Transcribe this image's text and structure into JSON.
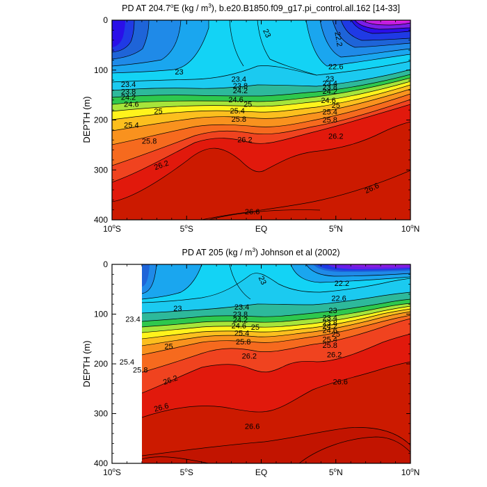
{
  "chart_data": [
    {
      "type": "contour",
      "title_prefix": "PD AT 204.7",
      "title_degree": "o",
      "title_suffix": "E (kg / m",
      "title_sup": "3",
      "title_end": "), b.e20.B1850.f09_g17.pi_control.all.162 [14-33]",
      "ylabel": "DEPTH (m)",
      "xlim": [
        -10,
        10
      ],
      "ylim": [
        400,
        0
      ],
      "x_ticks": [
        {
          "value": -10,
          "base": "10",
          "deg": "o",
          "hemi": "S"
        },
        {
          "value": -5,
          "base": "5",
          "deg": "o",
          "hemi": "S"
        },
        {
          "value": 0,
          "base": "EQ",
          "deg": "",
          "hemi": ""
        },
        {
          "value": 5,
          "base": "5",
          "deg": "o",
          "hemi": "N"
        },
        {
          "value": 10,
          "base": "10",
          "deg": "o",
          "hemi": "N"
        }
      ],
      "y_ticks": [
        0,
        100,
        200,
        300,
        400
      ],
      "data_start_lat": -10,
      "contour_labels": [
        {
          "text": "23",
          "lat": 0.4,
          "depth": 26,
          "angle": 65
        },
        {
          "text": "22.2",
          "lat": 5.2,
          "depth": 38,
          "angle": 80
        },
        {
          "text": "22.6",
          "lat": 5.0,
          "depth": 93
        },
        {
          "text": "23",
          "lat": -5.5,
          "depth": 103
        },
        {
          "text": "23",
          "lat": 4.6,
          "depth": 117
        },
        {
          "text": "23.4",
          "lat": -8.9,
          "depth": 128
        },
        {
          "text": "23.4",
          "lat": -1.5,
          "depth": 118
        },
        {
          "text": "23.4",
          "lat": 4.6,
          "depth": 126
        },
        {
          "text": "23.8",
          "lat": -8.9,
          "depth": 143
        },
        {
          "text": "23.8",
          "lat": -1.4,
          "depth": 131
        },
        {
          "text": "23.8",
          "lat": 4.6,
          "depth": 134
        },
        {
          "text": "24.2",
          "lat": -8.9,
          "depth": 154
        },
        {
          "text": "24.2",
          "lat": -1.4,
          "depth": 141
        },
        {
          "text": "24.2",
          "lat": 4.6,
          "depth": 142
        },
        {
          "text": "24.6",
          "lat": -8.7,
          "depth": 168
        },
        {
          "text": "24.6",
          "lat": -1.7,
          "depth": 159
        },
        {
          "text": "24.6",
          "lat": 4.5,
          "depth": 160
        },
        {
          "text": "25",
          "lat": -0.9,
          "depth": 168
        },
        {
          "text": "25",
          "lat": -6.9,
          "depth": 182
        },
        {
          "text": "25",
          "lat": 5.0,
          "depth": 170
        },
        {
          "text": "25.4",
          "lat": -1.6,
          "depth": 181
        },
        {
          "text": "25.4",
          "lat": -8.7,
          "depth": 210
        },
        {
          "text": "25.4",
          "lat": 4.6,
          "depth": 183
        },
        {
          "text": "25.8",
          "lat": -1.5,
          "depth": 198
        },
        {
          "text": "25.8",
          "lat": -7.5,
          "depth": 242
        },
        {
          "text": "25.8",
          "lat": 4.6,
          "depth": 199
        },
        {
          "text": "26.2",
          "lat": -1.1,
          "depth": 239
        },
        {
          "text": "26.2",
          "lat": 5.0,
          "depth": 232
        },
        {
          "text": "26.2",
          "lat": -6.7,
          "depth": 290,
          "angle": -20
        },
        {
          "text": "26.6",
          "lat": 7.4,
          "depth": 336,
          "angle": -25
        },
        {
          "text": "26.6",
          "lat": -0.6,
          "depth": 383
        }
      ]
    },
    {
      "type": "contour",
      "title": "PD AT 205 (kg / m",
      "title_sup": "3",
      "title_end": ") Johnson et al (2002)",
      "ylabel": "DEPTH (m)",
      "xlim": [
        -10,
        10
      ],
      "ylim": [
        400,
        0
      ],
      "x_ticks": [
        {
          "value": -10,
          "base": "10",
          "deg": "o",
          "hemi": "S"
        },
        {
          "value": -5,
          "base": "5",
          "deg": "o",
          "hemi": "S"
        },
        {
          "value": 0,
          "base": "EQ",
          "deg": "",
          "hemi": ""
        },
        {
          "value": 5,
          "base": "5",
          "deg": "o",
          "hemi": "N"
        },
        {
          "value": 10,
          "base": "10",
          "deg": "o",
          "hemi": "N"
        }
      ],
      "y_ticks": [
        0,
        100,
        200,
        300,
        400
      ],
      "data_start_lat": -8,
      "contour_labels": [
        {
          "text": "23",
          "lat": 0.1,
          "depth": 32,
          "angle": 65
        },
        {
          "text": "22.2",
          "lat": 5.4,
          "depth": 38
        },
        {
          "text": "22.6",
          "lat": 5.2,
          "depth": 68
        },
        {
          "text": "23",
          "lat": -5.6,
          "depth": 88
        },
        {
          "text": "23",
          "lat": 4.8,
          "depth": 92
        },
        {
          "text": "23.4",
          "lat": -8.6,
          "depth": 110
        },
        {
          "text": "23.4",
          "lat": -1.3,
          "depth": 85
        },
        {
          "text": "23.4",
          "lat": 4.6,
          "depth": 107
        },
        {
          "text": "23.8",
          "lat": -1.4,
          "depth": 100
        },
        {
          "text": "23.8",
          "lat": 4.6,
          "depth": 117
        },
        {
          "text": "24.2",
          "lat": -1.4,
          "depth": 111
        },
        {
          "text": "24.2",
          "lat": 4.6,
          "depth": 124
        },
        {
          "text": "24.6",
          "lat": -1.5,
          "depth": 123
        },
        {
          "text": "24.6",
          "lat": 4.6,
          "depth": 132
        },
        {
          "text": "25",
          "lat": -0.4,
          "depth": 126
        },
        {
          "text": "25",
          "lat": -6.2,
          "depth": 164
        },
        {
          "text": "25",
          "lat": 5.0,
          "depth": 140
        },
        {
          "text": "25.4",
          "lat": -1.3,
          "depth": 138
        },
        {
          "text": "25.4",
          "lat": -9.0,
          "depth": 196
        },
        {
          "text": "25.4",
          "lat": 4.6,
          "depth": 150
        },
        {
          "text": "25.8",
          "lat": -1.2,
          "depth": 155
        },
        {
          "text": "25.8",
          "lat": -8.1,
          "depth": 212
        },
        {
          "text": "25.8",
          "lat": 4.6,
          "depth": 162
        },
        {
          "text": "26.2",
          "lat": -0.8,
          "depth": 184
        },
        {
          "text": "26.2",
          "lat": 4.9,
          "depth": 181
        },
        {
          "text": "26.2",
          "lat": -6.1,
          "depth": 232,
          "angle": -20
        },
        {
          "text": "26.6",
          "lat": 5.3,
          "depth": 236
        },
        {
          "text": "26.6",
          "lat": -6.7,
          "depth": 287,
          "angle": -15
        },
        {
          "text": "26.6",
          "lat": -0.6,
          "depth": 325
        }
      ]
    }
  ]
}
